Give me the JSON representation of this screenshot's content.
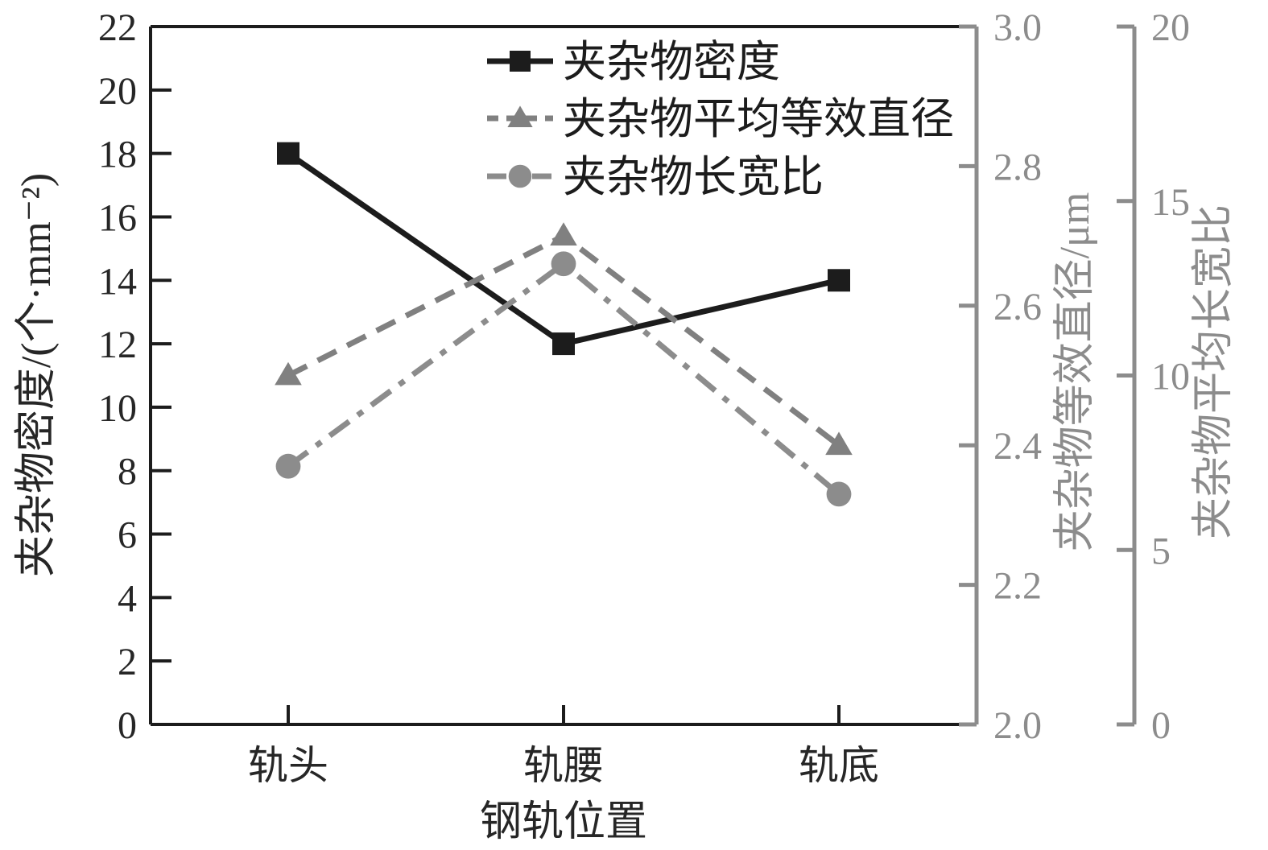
{
  "figure": {
    "background": "#ffffff",
    "frame_color": "#1c1c1c",
    "secondary_axis_color": "#8c8c8c"
  },
  "chart_data": {
    "type": "line",
    "categories": [
      "轨头",
      "轨腰",
      "轨底"
    ],
    "xlabel": "钢轨位置",
    "grid": false,
    "legend_position": "upper-center-inside",
    "axes": {
      "left": {
        "label": "夹杂物密度/(个·mm⁻²)",
        "min": 0,
        "max": 22,
        "tick_labels": [
          "0",
          "2",
          "4",
          "6",
          "8",
          "10",
          "12",
          "14",
          "16",
          "18",
          "20",
          "22"
        ],
        "color": "#262626"
      },
      "right_inner": {
        "label": "夹杂物等效直径/μm",
        "min": 2.0,
        "max": 3.0,
        "tick_labels": [
          "2.0",
          "2.2",
          "2.4",
          "2.6",
          "2.8",
          "3.0"
        ],
        "color": "#8c8c8c"
      },
      "right_outer": {
        "label": "夹杂物平均长宽比",
        "min": 0,
        "max": 20,
        "tick_labels": [
          "0",
          "5",
          "10",
          "15",
          "20"
        ],
        "color": "#8c8c8c"
      }
    },
    "series": [
      {
        "name": "夹杂物密度",
        "axis": "left",
        "values": [
          18,
          12,
          14
        ],
        "color": "#1c1c1c",
        "marker": "square",
        "line": "solid"
      },
      {
        "name": "夹杂物平均等效直径",
        "axis": "right_inner",
        "values": [
          2.5,
          2.7,
          2.4
        ],
        "color": "#808080",
        "marker": "triangle",
        "line": "dashed"
      },
      {
        "name": "夹杂物长宽比",
        "axis": "right_outer",
        "values": [
          7.4,
          13.2,
          6.6
        ],
        "color": "#8c8c8c",
        "marker": "circle",
        "line": "dashdot"
      }
    ]
  }
}
